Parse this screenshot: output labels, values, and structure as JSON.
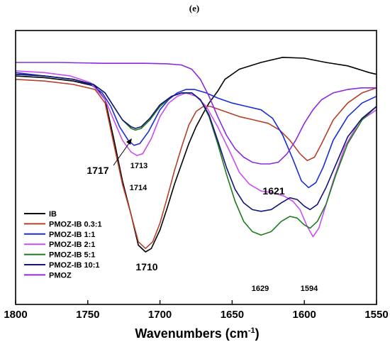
{
  "panel_label": "(e)",
  "chart_data": {
    "type": "line",
    "title": "",
    "xlabel_main": "Wavenumbers (cm",
    "xlabel_sup": "-1",
    "xlabel_close": ")",
    "ylabel": "",
    "xlim": [
      1800,
      1550
    ],
    "x_reversed": true,
    "grid": false,
    "legend_position": "bottom-left",
    "x_ticks": [
      1800,
      1750,
      1700,
      1650,
      1600,
      1550
    ],
    "x_tick_labels": [
      "1800",
      "1750",
      "1700",
      "1650",
      "1600",
      "1550"
    ],
    "series": [
      {
        "name": "IB",
        "color": "#000000",
        "points": [
          [
            1800,
            0.82
          ],
          [
            1780,
            0.81
          ],
          [
            1760,
            0.79
          ],
          [
            1745,
            0.76
          ],
          [
            1738,
            0.68
          ],
          [
            1732,
            0.45
          ],
          [
            1726,
            0.2
          ],
          [
            1720,
            0.0
          ],
          [
            1715,
            -0.18
          ],
          [
            1710,
            -0.22
          ],
          [
            1706,
            -0.2
          ],
          [
            1700,
            -0.09
          ],
          [
            1695,
            0.04
          ],
          [
            1690,
            0.18
          ],
          [
            1685,
            0.3
          ],
          [
            1680,
            0.42
          ],
          [
            1675,
            0.52
          ],
          [
            1670,
            0.6
          ],
          [
            1666,
            0.66
          ],
          [
            1660,
            0.73
          ],
          [
            1655,
            0.8
          ],
          [
            1645,
            0.86
          ],
          [
            1630,
            0.9
          ],
          [
            1615,
            0.93
          ],
          [
            1600,
            0.925
          ],
          [
            1585,
            0.9
          ],
          [
            1570,
            0.88
          ],
          [
            1555,
            0.84
          ],
          [
            1550,
            0.83
          ]
        ]
      },
      {
        "name": "PMOZ-IB 0.3:1",
        "color": "#b5402a",
        "points": [
          [
            1800,
            0.8
          ],
          [
            1780,
            0.79
          ],
          [
            1760,
            0.77
          ],
          [
            1745,
            0.74
          ],
          [
            1738,
            0.66
          ],
          [
            1732,
            0.42
          ],
          [
            1726,
            0.18
          ],
          [
            1720,
            0.0
          ],
          [
            1715,
            -0.16
          ],
          [
            1710,
            -0.2
          ],
          [
            1705,
            -0.16
          ],
          [
            1700,
            -0.05
          ],
          [
            1695,
            0.1
          ],
          [
            1690,
            0.26
          ],
          [
            1685,
            0.4
          ],
          [
            1680,
            0.53
          ],
          [
            1675,
            0.61
          ],
          [
            1670,
            0.64
          ],
          [
            1665,
            0.64
          ],
          [
            1655,
            0.61
          ],
          [
            1645,
            0.58
          ],
          [
            1635,
            0.56
          ],
          [
            1625,
            0.54
          ],
          [
            1617,
            0.5
          ],
          [
            1610,
            0.44
          ],
          [
            1603,
            0.36
          ],
          [
            1598,
            0.32
          ],
          [
            1593,
            0.34
          ],
          [
            1588,
            0.42
          ],
          [
            1580,
            0.56
          ],
          [
            1570,
            0.66
          ],
          [
            1560,
            0.72
          ],
          [
            1550,
            0.75
          ]
        ]
      },
      {
        "name": "PMOZ-IB 1:1",
        "color": "#1a2ed6",
        "points": [
          [
            1800,
            0.84
          ],
          [
            1780,
            0.82
          ],
          [
            1760,
            0.8
          ],
          [
            1748,
            0.77
          ],
          [
            1740,
            0.72
          ],
          [
            1734,
            0.64
          ],
          [
            1728,
            0.52
          ],
          [
            1722,
            0.44
          ],
          [
            1718,
            0.41
          ],
          [
            1714,
            0.42
          ],
          [
            1708,
            0.49
          ],
          [
            1700,
            0.62
          ],
          [
            1694,
            0.68
          ],
          [
            1688,
            0.72
          ],
          [
            1682,
            0.74
          ],
          [
            1676,
            0.74
          ],
          [
            1668,
            0.72
          ],
          [
            1660,
            0.69
          ],
          [
            1650,
            0.66
          ],
          [
            1640,
            0.64
          ],
          [
            1630,
            0.62
          ],
          [
            1622,
            0.57
          ],
          [
            1615,
            0.47
          ],
          [
            1608,
            0.33
          ],
          [
            1602,
            0.2
          ],
          [
            1597,
            0.16
          ],
          [
            1592,
            0.19
          ],
          [
            1587,
            0.28
          ],
          [
            1580,
            0.44
          ],
          [
            1570,
            0.58
          ],
          [
            1560,
            0.66
          ],
          [
            1550,
            0.7
          ]
        ]
      },
      {
        "name": "PMOZ-IB 2:1",
        "color": "#c84ff0",
        "points": [
          [
            1800,
            0.85
          ],
          [
            1780,
            0.84
          ],
          [
            1762,
            0.82
          ],
          [
            1748,
            0.78
          ],
          [
            1738,
            0.68
          ],
          [
            1732,
            0.56
          ],
          [
            1726,
            0.44
          ],
          [
            1720,
            0.37
          ],
          [
            1716,
            0.35
          ],
          [
            1712,
            0.36
          ],
          [
            1706,
            0.45
          ],
          [
            1700,
            0.58
          ],
          [
            1694,
            0.66
          ],
          [
            1688,
            0.7
          ],
          [
            1682,
            0.72
          ],
          [
            1675,
            0.7
          ],
          [
            1668,
            0.64
          ],
          [
            1660,
            0.52
          ],
          [
            1652,
            0.38
          ],
          [
            1645,
            0.25
          ],
          [
            1638,
            0.18
          ],
          [
            1630,
            0.14
          ],
          [
            1622,
            0.13
          ],
          [
            1614,
            0.11
          ],
          [
            1608,
            0.08
          ],
          [
            1603,
            0.03
          ],
          [
            1598,
            -0.07
          ],
          [
            1594,
            -0.13
          ],
          [
            1590,
            -0.08
          ],
          [
            1586,
            0.03
          ],
          [
            1580,
            0.2
          ],
          [
            1572,
            0.4
          ],
          [
            1562,
            0.55
          ],
          [
            1550,
            0.62
          ]
        ]
      },
      {
        "name": "PMOZ-IB 5:1",
        "color": "#1f7a1f",
        "points": [
          [
            1800,
            0.83
          ],
          [
            1780,
            0.82
          ],
          [
            1760,
            0.8
          ],
          [
            1746,
            0.77
          ],
          [
            1738,
            0.72
          ],
          [
            1732,
            0.64
          ],
          [
            1726,
            0.56
          ],
          [
            1720,
            0.51
          ],
          [
            1717,
            0.5
          ],
          [
            1713,
            0.51
          ],
          [
            1707,
            0.56
          ],
          [
            1700,
            0.64
          ],
          [
            1692,
            0.7
          ],
          [
            1685,
            0.72
          ],
          [
            1678,
            0.72
          ],
          [
            1672,
            0.68
          ],
          [
            1666,
            0.58
          ],
          [
            1660,
            0.42
          ],
          [
            1654,
            0.24
          ],
          [
            1648,
            0.08
          ],
          [
            1642,
            -0.04
          ],
          [
            1636,
            -0.1
          ],
          [
            1630,
            -0.12
          ],
          [
            1623,
            -0.1
          ],
          [
            1616,
            -0.04
          ],
          [
            1610,
            -0.01
          ],
          [
            1605,
            -0.02
          ],
          [
            1600,
            -0.06
          ],
          [
            1596,
            -0.08
          ],
          [
            1591,
            -0.04
          ],
          [
            1585,
            0.06
          ],
          [
            1578,
            0.24
          ],
          [
            1570,
            0.42
          ],
          [
            1560,
            0.56
          ],
          [
            1550,
            0.64
          ]
        ]
      },
      {
        "name": "PMOZ-IB 10:1",
        "color": "#14147a",
        "points": [
          [
            1800,
            0.83
          ],
          [
            1780,
            0.82
          ],
          [
            1760,
            0.8
          ],
          [
            1746,
            0.77
          ],
          [
            1738,
            0.72
          ],
          [
            1732,
            0.64
          ],
          [
            1726,
            0.56
          ],
          [
            1720,
            0.52
          ],
          [
            1717,
            0.51
          ],
          [
            1713,
            0.52
          ],
          [
            1707,
            0.57
          ],
          [
            1700,
            0.65
          ],
          [
            1692,
            0.7
          ],
          [
            1685,
            0.72
          ],
          [
            1678,
            0.72
          ],
          [
            1672,
            0.68
          ],
          [
            1666,
            0.59
          ],
          [
            1660,
            0.44
          ],
          [
            1654,
            0.28
          ],
          [
            1648,
            0.15
          ],
          [
            1642,
            0.07
          ],
          [
            1636,
            0.03
          ],
          [
            1630,
            0.02
          ],
          [
            1623,
            0.03
          ],
          [
            1616,
            0.07
          ],
          [
            1610,
            0.1
          ],
          [
            1605,
            0.09
          ],
          [
            1600,
            0.05
          ],
          [
            1596,
            0.03
          ],
          [
            1591,
            0.06
          ],
          [
            1585,
            0.16
          ],
          [
            1578,
            0.3
          ],
          [
            1570,
            0.46
          ],
          [
            1560,
            0.57
          ],
          [
            1550,
            0.64
          ]
        ]
      },
      {
        "name": "PMOZ",
        "color": "#8a2be2",
        "points": [
          [
            1800,
            0.9
          ],
          [
            1770,
            0.9
          ],
          [
            1740,
            0.895
          ],
          [
            1710,
            0.895
          ],
          [
            1695,
            0.892
          ],
          [
            1685,
            0.885
          ],
          [
            1678,
            0.86
          ],
          [
            1672,
            0.8
          ],
          [
            1666,
            0.7
          ],
          [
            1660,
            0.58
          ],
          [
            1654,
            0.47
          ],
          [
            1648,
            0.39
          ],
          [
            1642,
            0.34
          ],
          [
            1636,
            0.31
          ],
          [
            1630,
            0.3
          ],
          [
            1624,
            0.3
          ],
          [
            1618,
            0.31
          ],
          [
            1612,
            0.36
          ],
          [
            1606,
            0.44
          ],
          [
            1600,
            0.54
          ],
          [
            1594,
            0.62
          ],
          [
            1588,
            0.68
          ],
          [
            1580,
            0.72
          ],
          [
            1570,
            0.74
          ],
          [
            1560,
            0.75
          ],
          [
            1550,
            0.75
          ]
        ]
      }
    ],
    "annotations": [
      {
        "text": "1717",
        "size": "big"
      },
      {
        "text": "1713",
        "size": "small"
      },
      {
        "text": "1714",
        "size": "small"
      },
      {
        "text": "1710",
        "size": "big"
      },
      {
        "text": "1621",
        "size": "big"
      },
      {
        "text": "1629",
        "size": "small"
      },
      {
        "text": "1594",
        "size": "small"
      }
    ]
  }
}
